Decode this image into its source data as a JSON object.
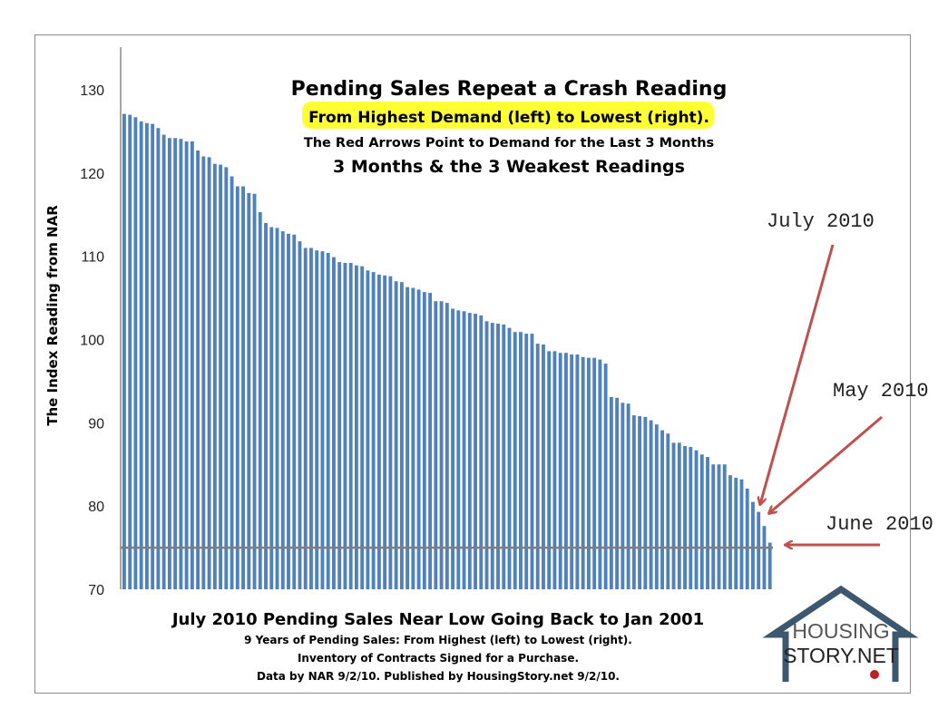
{
  "chart_data": {
    "type": "bar",
    "title": "Pending Sales Repeat a Crash Reading",
    "subtitle_highlight": "From Highest  Demand (left) to Lowest (right).",
    "subtitle_2": "The Red Arrows Point to Demand for the Last 3 Months",
    "subtitle_3": "3 Months & the 3 Weakest Readings",
    "ylabel": "The Index Reading from NAR",
    "xlabel": "July 2010 Pending Sales Near Low Going Back to Jan 2001",
    "notes": [
      "9 Years of Pending Sales: From Highest (left) to Lowest (right).",
      "Inventory of Contracts Signed for a Purchase.",
      "Data by NAR 9/2/10. Published by HousingStory.net  9/2/10."
    ],
    "ylim": [
      70,
      135
    ],
    "yticks": [
      70,
      80,
      90,
      100,
      110,
      120,
      130
    ],
    "reference_line": 75,
    "annotations": [
      {
        "label": "July 2010",
        "points_to_value": 80.5
      },
      {
        "label": "May 2010",
        "points_to_value": 79.3
      },
      {
        "label": "June 2010",
        "points_to_value": 75.6
      }
    ],
    "bar_color": "#4f81bd",
    "arrow_color": "#c0504d",
    "values": [
      127.1,
      127.0,
      126.7,
      126.2,
      126.0,
      125.9,
      125.4,
      124.6,
      124.2,
      124.2,
      124.1,
      123.8,
      123.8,
      122.7,
      122.0,
      121.9,
      121.1,
      121.0,
      120.7,
      119.6,
      118.4,
      118.4,
      117.6,
      117.5,
      115.3,
      114.0,
      113.5,
      113.4,
      113.0,
      112.7,
      112.6,
      111.8,
      111.0,
      111.0,
      110.7,
      110.6,
      110.4,
      109.9,
      109.3,
      109.2,
      109.2,
      108.9,
      108.8,
      108.3,
      108.1,
      107.8,
      107.7,
      107.6,
      107.0,
      106.9,
      106.3,
      106.2,
      106.0,
      105.7,
      105.6,
      104.6,
      104.6,
      104.4,
      103.7,
      103.5,
      103.4,
      103.2,
      103.1,
      102.9,
      102.2,
      102.0,
      101.9,
      101.8,
      101.4,
      100.9,
      100.9,
      100.7,
      100.7,
      99.5,
      99.4,
      98.6,
      98.6,
      98.4,
      98.4,
      98.2,
      98.2,
      97.9,
      97.8,
      97.8,
      97.6,
      97.1,
      93.1,
      93.0,
      92.4,
      92.3,
      90.9,
      90.8,
      90.7,
      90.3,
      89.8,
      89.1,
      88.7,
      87.6,
      87.6,
      87.2,
      87.1,
      86.7,
      86.2,
      85.9,
      85.0,
      85.0,
      85.0,
      83.7,
      83.4,
      83.2,
      82.1,
      80.5,
      79.3,
      77.6,
      75.6
    ]
  },
  "logo": {
    "line1": "HOUSING",
    "line2": "STORY.NET"
  }
}
